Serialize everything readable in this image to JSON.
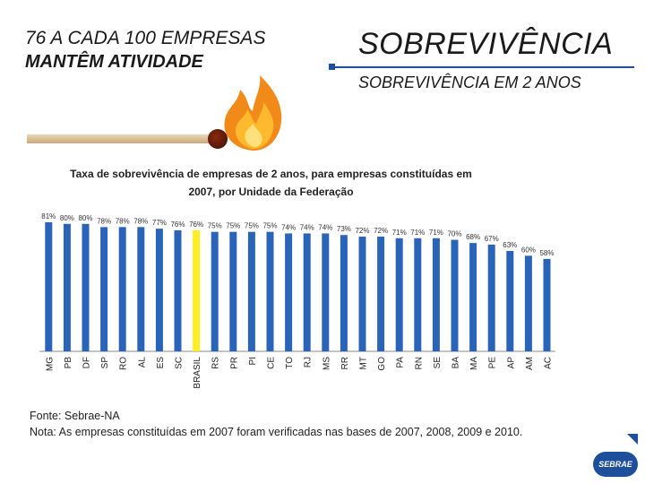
{
  "header": {
    "left_line1": "76 A CADA 100 EMPRESAS",
    "left_line2": "MANTÊM ATIVIDADE",
    "right_title": "SOBREVIVÊNCIA",
    "right_subtitle": "SOBREVIVÊNCIA EM 2 ANOS"
  },
  "colors": {
    "bar": "#2a64b8",
    "bar_highlight": "#ffee22",
    "accent": "#1e4f9c"
  },
  "chart_data": {
    "type": "bar",
    "title_line1": "Taxa de sobrevivência de empresas de 2 anos, para empresas constituídas em",
    "title_line2": "2007, por Unidade da Federação",
    "categories": [
      "MG",
      "PB",
      "DF",
      "SP",
      "RO",
      "AL",
      "ES",
      "SC",
      "BRASIL",
      "RS",
      "PR",
      "PI",
      "CE",
      "TO",
      "RJ",
      "MS",
      "RR",
      "MT",
      "GO",
      "PA",
      "RN",
      "SE",
      "BA",
      "MA",
      "PE",
      "AP",
      "AM",
      "AC"
    ],
    "values": [
      81,
      80,
      80,
      78,
      78,
      78,
      77,
      76,
      76,
      75,
      75,
      75,
      75,
      74,
      74,
      74,
      73,
      72,
      72,
      71,
      71,
      71,
      70,
      68,
      67,
      63,
      60,
      58
    ],
    "value_labels": [
      "81%",
      "80%",
      "80%",
      "78%",
      "78%",
      "78%",
      "77%",
      "76%",
      "76%",
      "75%",
      "75%",
      "75%",
      "75%",
      "74%",
      "74%",
      "74%",
      "73%",
      "72%",
      "72%",
      "71%",
      "71%",
      "71%",
      "70%",
      "68%",
      "67%",
      "63%",
      "60%",
      "58%"
    ],
    "highlight": "BRASIL",
    "ylim": [
      0,
      90
    ],
    "xlabel": "",
    "ylabel": ""
  },
  "footnote": {
    "source": "Fonte: Sebrae-NA",
    "note": "Nota: As empresas constituídas em 2007 foram verificadas nas bases de 2007, 2008, 2009 e 2010."
  },
  "logo": {
    "text": "SEBRAE"
  }
}
